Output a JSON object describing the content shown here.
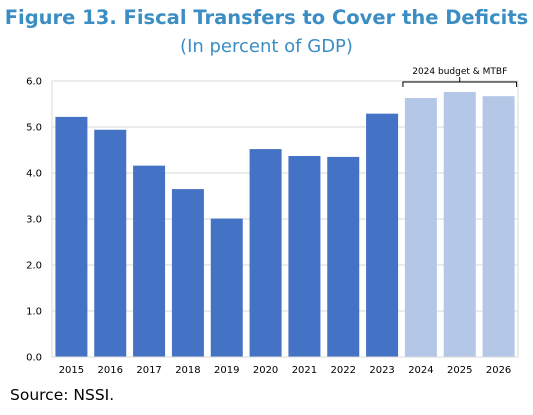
{
  "title": "Figure 13. Fiscal Transfers to Cover the Deficits",
  "subtitle": "(In percent of GDP)",
  "source": "Source: NSSI.",
  "colors": {
    "actual": "#4472c4",
    "projection": "#b4c7e7",
    "title": "#3b8ec4"
  },
  "chart_data": {
    "type": "bar",
    "categories": [
      "2015",
      "2016",
      "2017",
      "2018",
      "2019",
      "2020",
      "2021",
      "2022",
      "2023",
      "2024",
      "2025",
      "2026"
    ],
    "values": [
      5.22,
      4.94,
      4.16,
      3.65,
      3.01,
      4.52,
      4.37,
      4.35,
      5.29,
      5.63,
      5.76,
      5.67
    ],
    "projection_from_index": 9,
    "ylim": [
      0,
      6
    ],
    "yticks": [
      "0.0",
      "1.0",
      "2.0",
      "3.0",
      "4.0",
      "5.0",
      "6.0"
    ],
    "annotation": "2024 budget & MTBF",
    "grid": true
  }
}
